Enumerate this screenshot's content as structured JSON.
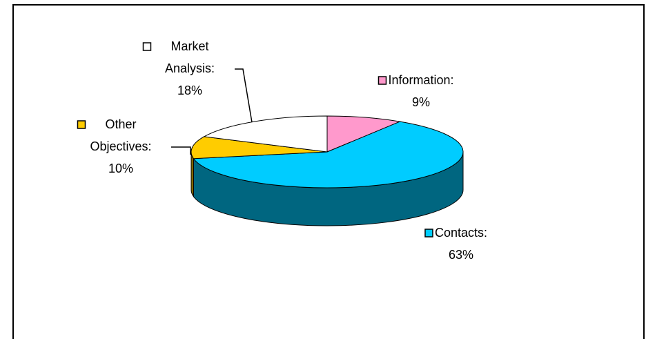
{
  "chart_data": {
    "type": "pie3d",
    "categories": [
      "Information:",
      "Contacts:",
      "Other Objectives:",
      "Market Analysis:"
    ],
    "values": [
      9,
      63,
      10,
      18
    ],
    "value_labels": [
      "9%",
      "63%",
      "10%",
      "18%"
    ],
    "colors": [
      "#ff99cc",
      "#00ccff",
      "#ffcc00",
      "#ffffff"
    ]
  }
}
